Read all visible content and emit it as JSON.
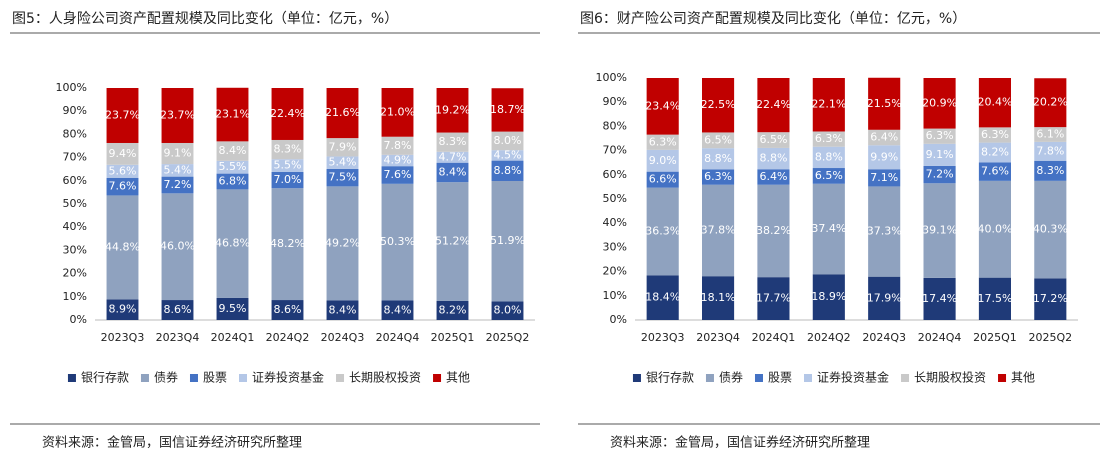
{
  "chart_data": [
    {
      "type": "stacked-bar",
      "title": "图5：人身险公司资产配置规模及同比变化（单位：亿元，%）",
      "source": "资料来源：金管局，国信证券经济研究所整理",
      "categories": [
        "2023Q3",
        "2023Q4",
        "2024Q1",
        "2024Q2",
        "2024Q3",
        "2024Q4",
        "2025Q1",
        "2025Q2"
      ],
      "ylim": [
        0,
        100
      ],
      "yticks": [
        {
          "value": 0,
          "label": "0%"
        },
        {
          "value": 10,
          "label": "10%"
        },
        {
          "value": 20,
          "label": "20%"
        },
        {
          "value": 30,
          "label": "30%"
        },
        {
          "value": 40,
          "label": "40%"
        },
        {
          "value": 50,
          "label": "50%"
        },
        {
          "value": 60,
          "label": "60%"
        },
        {
          "value": 70,
          "label": "70%"
        },
        {
          "value": 80,
          "label": "80%"
        },
        {
          "value": 90,
          "label": "90%"
        },
        {
          "value": 100,
          "label": "100%"
        }
      ],
      "series": [
        {
          "name": "银行存款",
          "color": "#1f3a78",
          "values": [
            8.9,
            8.6,
            9.5,
            8.6,
            8.4,
            8.4,
            8.2,
            8.0
          ],
          "value_labels": [
            "8.9%",
            "8.6%",
            "9.5%",
            "8.6%",
            "8.4%",
            "8.4%",
            "8.2%",
            "8.0%"
          ]
        },
        {
          "name": "债券",
          "color": "#8fa2bf",
          "values": [
            44.8,
            46.0,
            46.8,
            48.2,
            49.2,
            50.3,
            51.2,
            51.9
          ],
          "value_labels": [
            "44.8%",
            "46.0%",
            "46.8%",
            "48.2%",
            "49.2%",
            "50.3%",
            "51.2%",
            "51.9%"
          ]
        },
        {
          "name": "股票",
          "color": "#4472c4",
          "values": [
            7.6,
            7.2,
            6.8,
            7.0,
            7.5,
            7.6,
            8.4,
            8.8
          ],
          "value_labels": [
            "7.6%",
            "7.2%",
            "6.8%",
            "7.0%",
            "7.5%",
            "7.6%",
            "8.4%",
            "8.8%"
          ]
        },
        {
          "name": "证券投资基金",
          "color": "#b4c7e7",
          "values": [
            5.6,
            5.4,
            5.5,
            5.5,
            5.4,
            4.9,
            4.7,
            4.5
          ],
          "value_labels": [
            "5.6%",
            "5.4%",
            "5.5%",
            "5.5%",
            "5.4%",
            "4.9%",
            "4.7%",
            "4.5%"
          ]
        },
        {
          "name": "长期股权投资",
          "color": "#c9c9c9",
          "values": [
            9.4,
            9.1,
            8.4,
            8.3,
            7.9,
            7.8,
            8.3,
            8.0
          ],
          "value_labels": [
            "9.4%",
            "9.1%",
            "8.4%",
            "8.3%",
            "7.9%",
            "7.8%",
            "8.3%",
            "8.0%"
          ]
        },
        {
          "name": "其他",
          "color": "#c00000",
          "values": [
            23.7,
            23.7,
            23.1,
            22.4,
            21.6,
            21.0,
            19.2,
            18.7
          ],
          "value_labels": [
            "23.7%",
            "23.7%",
            "23.1%",
            "22.4%",
            "21.6%",
            "21.0%",
            "19.2%",
            "18.7%"
          ]
        }
      ]
    },
    {
      "type": "stacked-bar",
      "title": "图6：财产险公司资产配置规模及同比变化（单位：亿元，%）",
      "source": "资料来源：金管局，国信证券经济研究所整理",
      "categories": [
        "2023Q3",
        "2023Q4",
        "2024Q1",
        "2024Q2",
        "2024Q3",
        "2024Q4",
        "2025Q1",
        "2025Q2"
      ],
      "ylim": [
        0,
        100
      ],
      "yticks": [
        {
          "value": 0,
          "label": "0%"
        },
        {
          "value": 10,
          "label": "10%"
        },
        {
          "value": 20,
          "label": "20%"
        },
        {
          "value": 30,
          "label": "30%"
        },
        {
          "value": 40,
          "label": "40%"
        },
        {
          "value": 50,
          "label": "50%"
        },
        {
          "value": 60,
          "label": "60%"
        },
        {
          "value": 70,
          "label": "70%"
        },
        {
          "value": 80,
          "label": "80%"
        },
        {
          "value": 90,
          "label": "90%"
        },
        {
          "value": 100,
          "label": "100%"
        }
      ],
      "series": [
        {
          "name": "银行存款",
          "color": "#1f3a78",
          "values": [
            18.4,
            18.1,
            17.7,
            18.9,
            17.9,
            17.4,
            17.5,
            17.2
          ],
          "value_labels": [
            "18.4%",
            "18.1%",
            "17.7%",
            "18.9%",
            "17.9%",
            "17.4%",
            "17.5%",
            "17.2%"
          ]
        },
        {
          "name": "债券",
          "color": "#8fa2bf",
          "values": [
            36.3,
            37.8,
            38.2,
            37.4,
            37.3,
            39.1,
            40.0,
            40.3
          ],
          "value_labels": [
            "36.3%",
            "37.8%",
            "38.2%",
            "37.4%",
            "37.3%",
            "39.1%",
            "40.0%",
            "40.3%"
          ]
        },
        {
          "name": "股票",
          "color": "#4472c4",
          "values": [
            6.6,
            6.3,
            6.4,
            6.5,
            7.1,
            7.2,
            7.6,
            8.3
          ],
          "value_labels": [
            "6.6%",
            "6.3%",
            "6.4%",
            "6.5%",
            "7.1%",
            "7.2%",
            "7.6%",
            "8.3%"
          ]
        },
        {
          "name": "证券投资基金",
          "color": "#b4c7e7",
          "values": [
            9.0,
            8.8,
            8.8,
            8.8,
            9.9,
            9.1,
            8.2,
            7.8
          ],
          "value_labels": [
            "9.0%",
            "8.8%",
            "8.8%",
            "8.8%",
            "9.9%",
            "9.1%",
            "8.2%",
            "7.8%"
          ]
        },
        {
          "name": "长期股权投资",
          "color": "#c9c9c9",
          "values": [
            6.3,
            6.5,
            6.5,
            6.3,
            6.4,
            6.3,
            6.3,
            6.1
          ],
          "value_labels": [
            "6.3%",
            "6.5%",
            "6.5%",
            "6.3%",
            "6.4%",
            "6.3%",
            "6.3%",
            "6.1%"
          ]
        },
        {
          "name": "其他",
          "color": "#c00000",
          "values": [
            23.4,
            22.5,
            22.4,
            22.1,
            21.5,
            20.9,
            20.4,
            20.2
          ],
          "value_labels": [
            "23.4%",
            "22.5%",
            "22.4%",
            "22.1%",
            "21.5%",
            "20.9%",
            "20.4%",
            "20.2%"
          ]
        }
      ]
    }
  ]
}
